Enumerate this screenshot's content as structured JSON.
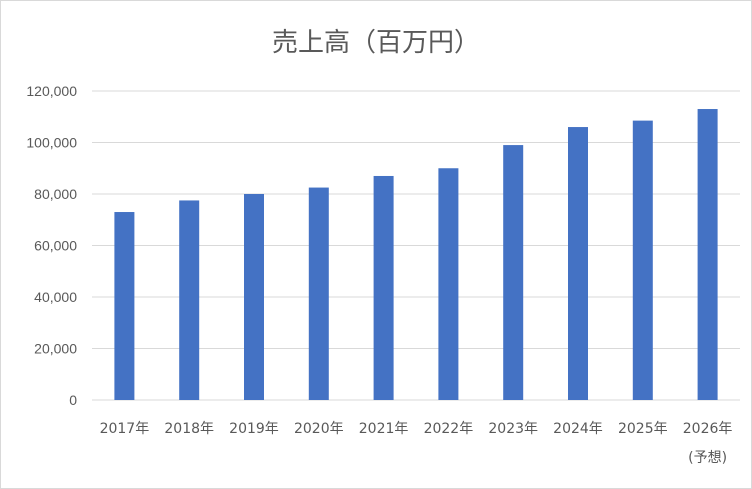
{
  "chart_data": {
    "type": "bar",
    "title": "売上高（百万円）",
    "xlabel": "",
    "ylabel": "",
    "categories": [
      "2017年",
      "2018年",
      "2019年",
      "2020年",
      "2021年",
      "2022年",
      "2023年",
      "2024年",
      "2025年",
      "2026年"
    ],
    "category_sublabels": [
      "",
      "",
      "",
      "",
      "",
      "",
      "",
      "",
      "",
      "(予想)"
    ],
    "values": [
      73000,
      77500,
      80000,
      82500,
      87000,
      90000,
      99000,
      106000,
      108500,
      113000
    ],
    "ylim": [
      0,
      120000
    ],
    "yticks": [
      0,
      20000,
      40000,
      60000,
      80000,
      100000,
      120000
    ],
    "ytick_labels": [
      "0",
      "20,000",
      "40,000",
      "60,000",
      "80,000",
      "100,000",
      "120,000"
    ],
    "grid": true,
    "legend": "none",
    "bar_color": "#4472c4",
    "grid_color": "#d9d9d9",
    "text_color": "#595959"
  }
}
